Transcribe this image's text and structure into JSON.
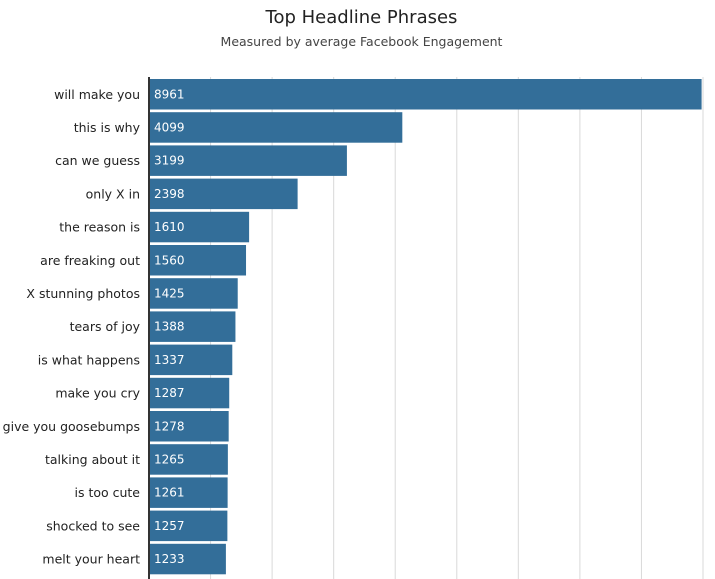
{
  "chart_data": {
    "type": "bar",
    "orientation": "horizontal",
    "title": "Top Headline Phrases",
    "subtitle": "Measured by average Facebook Engagement",
    "categories": [
      "will make you",
      "this is why",
      "can we guess",
      "only X in",
      "the reason is",
      "are freaking out",
      "X stunning photos",
      "tears of joy",
      "is what happens",
      "make you cry",
      "give you goosebumps",
      "talking about it",
      "is too cute",
      "shocked to see",
      "melt your heart"
    ],
    "values": [
      8961,
      4099,
      3199,
      2398,
      1610,
      1560,
      1425,
      1388,
      1337,
      1287,
      1278,
      1265,
      1261,
      1257,
      1233
    ],
    "value_labels": [
      "8961",
      "4099",
      "3199",
      "2398",
      "1610",
      "1560",
      "1425",
      "1388",
      "1337",
      "1287",
      "1278",
      "1265",
      "1261",
      "1257",
      "1233"
    ],
    "xlim": [
      0,
      9000
    ],
    "xgrid_step": 1000,
    "grid": true,
    "tick_labels_shown": false,
    "legend": "none",
    "colors": {
      "bar": "#336e99",
      "bar_label": "#ffffff",
      "grid": "#d9d9d9",
      "axis": "#333333"
    }
  }
}
